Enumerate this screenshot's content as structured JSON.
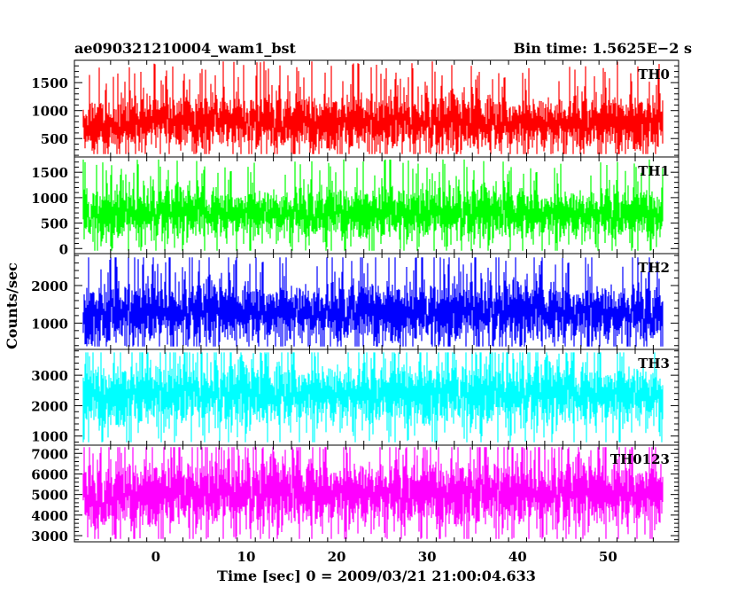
{
  "header": {
    "title": "ae090321210004_wam1_bst",
    "bin_time": "Bin time: 1.5625E−2 s"
  },
  "axes": {
    "ylabel": "Counts/sec",
    "xlabel": "Time [sec] 0 = 2009/03/21 21:00:04.633"
  },
  "chart_data": {
    "type": "line",
    "title": "ae090321210004_wam1_bst",
    "subtitle": "Bin time: 1.5625E−2 s",
    "xlabel": "Time [sec] 0 = 2009/03/21 21:00:04.633",
    "ylabel": "Counts/sec",
    "xlim": [
      -9.0,
      57.8
    ],
    "x_range_data": [
      -8.0,
      56.0
    ],
    "x_ticks": [
      0,
      10,
      20,
      30,
      40,
      50
    ],
    "bin_time_s": 0.015625,
    "grid": false,
    "panels": [
      {
        "label": "TH0",
        "color": "#ff0000",
        "ylim": [
          170,
          1900
        ],
        "y_ticks": [
          500,
          1000,
          1500
        ],
        "series_points": [
          {
            "x": -8,
            "y": 700
          },
          {
            "x": 0,
            "y": 800
          },
          {
            "x": 10,
            "y": 800
          },
          {
            "x": 20,
            "y": 790
          },
          {
            "x": 30,
            "y": 790
          },
          {
            "x": 40,
            "y": 780
          },
          {
            "x": 50,
            "y": 780
          },
          {
            "x": 56,
            "y": 780
          }
        ],
        "typical_band": [
          250,
          1350
        ],
        "peak": 1880
      },
      {
        "label": "TH1",
        "color": "#00ff00",
        "ylim": [
          -100,
          1800
        ],
        "y_ticks": [
          0,
          500,
          1000,
          1500
        ],
        "series_points": [
          {
            "x": -8,
            "y": 650
          },
          {
            "x": 0,
            "y": 700
          },
          {
            "x": 10,
            "y": 710
          },
          {
            "x": 20,
            "y": 700
          },
          {
            "x": 30,
            "y": 700
          },
          {
            "x": 40,
            "y": 690
          },
          {
            "x": 50,
            "y": 690
          },
          {
            "x": 56,
            "y": 690
          }
        ],
        "typical_band": [
          150,
          1250
        ],
        "peak": 1750
      },
      {
        "label": "TH2",
        "color": "#0000ff",
        "ylim": [
          300,
          2850
        ],
        "y_ticks": [
          1000,
          2000
        ],
        "series_points": [
          {
            "x": -8,
            "y": 1200
          },
          {
            "x": 0,
            "y": 1300
          },
          {
            "x": 10,
            "y": 1300
          },
          {
            "x": 20,
            "y": 1290
          },
          {
            "x": 30,
            "y": 1290
          },
          {
            "x": 40,
            "y": 1280
          },
          {
            "x": 50,
            "y": 1280
          },
          {
            "x": 56,
            "y": 1280
          }
        ],
        "typical_band": [
          450,
          2250
        ],
        "peak": 2750
      },
      {
        "label": "TH3",
        "color": "#00ffff",
        "ylim": [
          700,
          3850
        ],
        "y_ticks": [
          1000,
          2000,
          3000
        ],
        "series_points": [
          {
            "x": -8,
            "y": 2300
          },
          {
            "x": 0,
            "y": 2400
          },
          {
            "x": 10,
            "y": 2400
          },
          {
            "x": 20,
            "y": 2400
          },
          {
            "x": 30,
            "y": 2390
          },
          {
            "x": 40,
            "y": 2390
          },
          {
            "x": 50,
            "y": 2390
          },
          {
            "x": 56,
            "y": 2390
          }
        ],
        "typical_band": [
          1200,
          3500
        ],
        "peak": 3750
      },
      {
        "label": "TH0123",
        "color": "#ff00ff",
        "ylim": [
          2700,
          7400
        ],
        "y_ticks": [
          3000,
          4000,
          5000,
          6000,
          7000
        ],
        "series_points": [
          {
            "x": -8,
            "y": 4800
          },
          {
            "x": 0,
            "y": 5100
          },
          {
            "x": 10,
            "y": 5100
          },
          {
            "x": 20,
            "y": 5100
          },
          {
            "x": 30,
            "y": 5100
          },
          {
            "x": 40,
            "y": 5080
          },
          {
            "x": 50,
            "y": 5080
          },
          {
            "x": 56,
            "y": 5080
          }
        ],
        "typical_band": [
          3200,
          6800
        ],
        "peak": 7300
      }
    ]
  }
}
